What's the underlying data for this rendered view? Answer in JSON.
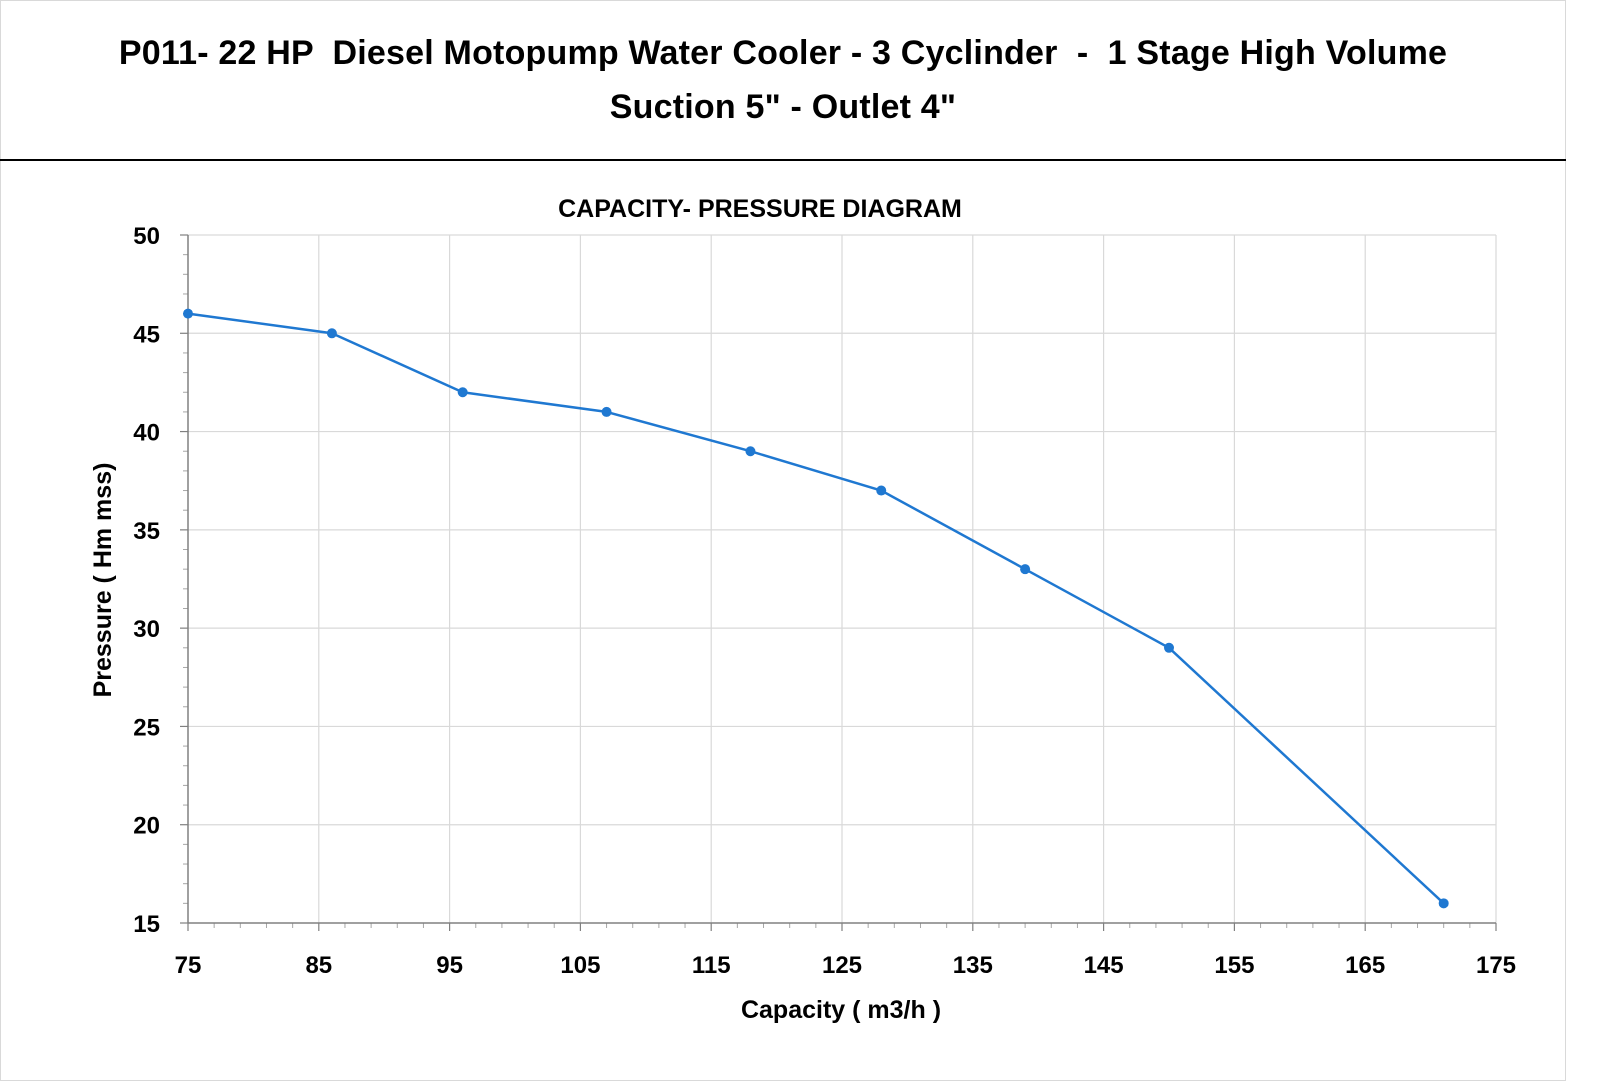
{
  "header": {
    "line1": "P011- 22 HP  Diesel Motopump Water Cooler - 3 Cyclinder  -  1 Stage High Volume",
    "line2": "Suction 5\" - Outlet 4\""
  },
  "colors": {
    "series": "#1f78d1",
    "grid": "#d9d9d9",
    "axis": "#000000"
  },
  "chart_data": {
    "type": "line",
    "title": "CAPACITY- PRESSURE DIAGRAM",
    "xlabel": "Capacity ( m3/h )",
    "ylabel": "Pressure ( Hm mss)",
    "xlim": [
      75,
      175
    ],
    "ylim": [
      15,
      50
    ],
    "xticks": [
      75,
      85,
      95,
      105,
      115,
      125,
      135,
      145,
      155,
      165,
      175
    ],
    "yticks": [
      15,
      20,
      25,
      30,
      35,
      40,
      45,
      50
    ],
    "grid": true,
    "legend": "none",
    "series": [
      {
        "x": [
          75,
          86,
          96,
          107,
          118,
          128,
          139,
          150,
          171
        ],
        "y": [
          46,
          45,
          42,
          41,
          39,
          37,
          33,
          29,
          16
        ],
        "marker": "circle"
      }
    ]
  }
}
